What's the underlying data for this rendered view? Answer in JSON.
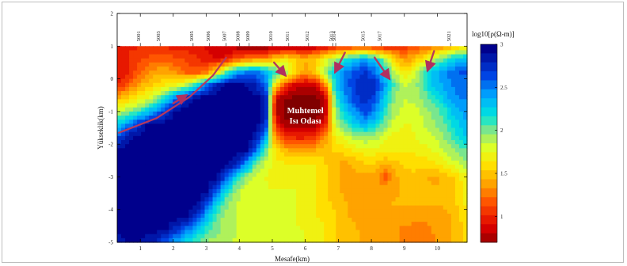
{
  "chart_data": {
    "type": "heatmap",
    "xlabel": "Mesafe(km)",
    "ylabel": "Yükseklik(km)",
    "x_ticks": [
      1,
      2,
      3,
      4,
      5,
      6,
      7,
      8,
      9,
      10
    ],
    "y_ticks": [
      2,
      1,
      0,
      -1,
      -2,
      -3,
      -4,
      -5
    ],
    "xlim": [
      0.3,
      10.9
    ],
    "ylim": [
      -5,
      2
    ],
    "colorbar": {
      "label": "log10[ρ(Ω-m)]",
      "ticks": [
        3,
        2.5,
        2,
        1.5,
        1
      ],
      "range": [
        0.7,
        3
      ]
    },
    "stations": [
      {
        "name": "5001",
        "x": 1.0
      },
      {
        "name": "5003",
        "x": 1.6
      },
      {
        "name": "5005",
        "x": 2.6
      },
      {
        "name": "5006",
        "x": 3.1
      },
      {
        "name": "5007",
        "x": 3.6
      },
      {
        "name": "5008",
        "x": 4.0
      },
      {
        "name": "5009",
        "x": 4.3
      },
      {
        "name": "5010",
        "x": 5.0
      },
      {
        "name": "5011",
        "x": 5.5
      },
      {
        "name": "5012",
        "x": 6.1
      },
      {
        "name": "5013",
        "x": 6.84
      },
      {
        "name": "5014",
        "x": 6.92
      },
      {
        "name": "5015",
        "x": 7.8
      },
      {
        "name": "5017",
        "x": 8.3
      },
      {
        "name": "5021",
        "x": 10.4
      }
    ],
    "annotation": {
      "line1": "Muhtemel",
      "line2": "Isı Odası",
      "x": 6.0,
      "y": -1.1
    },
    "faults": [
      {
        "x": [
          0.35,
          1.5,
          2.5,
          3.2,
          3.6
        ],
        "y": [
          -1.65,
          -1.2,
          -0.55,
          0.1,
          0.65
        ]
      },
      {
        "x": [
          2.0,
          2.4
        ],
        "y": [
          -0.75,
          -0.5
        ]
      },
      {
        "x": [
          5.05,
          5.4
        ],
        "y": [
          0.5,
          0.1
        ]
      },
      {
        "x": [
          7.2,
          6.9
        ],
        "y": [
          0.8,
          0.2
        ]
      },
      {
        "x": [
          8.1,
          8.55
        ],
        "y": [
          0.65,
          0.0
        ]
      },
      {
        "x": [
          9.9,
          9.7
        ],
        "y": [
          0.85,
          0.25
        ]
      }
    ],
    "model": {
      "grid_x": [
        0.3,
        0.6,
        0.9,
        1.2,
        1.5,
        1.8,
        2.1,
        2.4,
        2.7,
        3.0,
        3.3,
        3.6,
        3.9,
        4.2,
        4.5,
        4.8,
        5.1,
        5.4,
        5.7,
        6.0,
        6.3,
        6.6,
        6.9,
        7.2,
        7.5,
        7.8,
        8.1,
        8.4,
        8.7,
        9.0,
        9.3,
        9.6,
        9.9,
        10.2,
        10.5,
        10.8
      ],
      "grid_y": [
        1.0,
        0.6,
        0.2,
        -0.2,
        -0.6,
        -1.0,
        -1.4,
        -1.8,
        -2.2,
        -2.6,
        -3.0,
        -3.4,
        -3.8,
        -4.2,
        -4.6,
        -5.0
      ],
      "log_resistivity": [
        [
          1.05,
          1.05,
          1.05,
          1.05,
          1.05,
          1.05,
          1.0,
          1.0,
          1.0,
          0.95,
          0.9,
          0.85,
          0.8,
          0.75,
          0.75,
          0.75,
          0.75,
          0.75,
          0.8,
          0.8,
          0.85,
          0.9,
          1.0,
          1.05,
          1.1,
          1.1,
          1.05,
          1.0,
          1.05,
          1.1,
          1.2,
          1.25,
          1.3,
          1.4,
          1.5,
          1.6
        ],
        [
          1.0,
          1.05,
          1.15,
          1.2,
          1.25,
          1.25,
          1.2,
          1.15,
          1.1,
          1.0,
          0.95,
          1.0,
          1.2,
          1.3,
          1.4,
          1.4,
          1.6,
          1.7,
          1.6,
          1.5,
          1.6,
          1.8,
          2.0,
          2.2,
          2.35,
          2.45,
          2.3,
          2.0,
          1.6,
          1.4,
          1.5,
          1.7,
          1.95,
          2.1,
          2.3,
          2.4
        ],
        [
          0.95,
          1.05,
          1.2,
          1.35,
          1.45,
          1.45,
          1.35,
          1.25,
          1.2,
          1.3,
          1.65,
          2.1,
          2.45,
          2.55,
          2.6,
          2.4,
          2.2,
          2.0,
          1.6,
          1.4,
          1.6,
          2.0,
          2.3,
          2.55,
          2.7,
          2.75,
          2.6,
          2.3,
          1.9,
          1.7,
          1.85,
          2.1,
          2.35,
          2.5,
          2.6,
          2.65
        ],
        [
          1.05,
          1.2,
          1.4,
          1.55,
          1.65,
          1.7,
          1.8,
          1.95,
          2.25,
          2.6,
          2.9,
          3.0,
          3.0,
          2.95,
          2.85,
          2.6,
          1.6,
          1.1,
          0.9,
          0.85,
          0.9,
          1.3,
          2.3,
          2.55,
          2.75,
          2.85,
          2.8,
          2.5,
          2.1,
          1.9,
          1.95,
          2.15,
          2.35,
          2.45,
          2.55,
          2.6
        ],
        [
          1.5,
          1.6,
          1.7,
          1.8,
          2.0,
          2.3,
          2.6,
          2.85,
          3.0,
          3.0,
          3.0,
          3.0,
          3.0,
          3.0,
          3.0,
          2.9,
          0.9,
          0.75,
          0.7,
          0.7,
          0.7,
          0.85,
          2.1,
          2.5,
          2.7,
          2.8,
          2.7,
          2.3,
          2.0,
          1.9,
          1.95,
          2.05,
          2.2,
          2.35,
          2.5,
          2.55
        ],
        [
          1.9,
          2.0,
          2.1,
          2.3,
          2.55,
          2.8,
          3.0,
          3.0,
          3.0,
          3.0,
          3.0,
          3.0,
          3.0,
          3.0,
          3.0,
          2.9,
          0.85,
          0.7,
          0.7,
          0.7,
          0.7,
          0.8,
          2.0,
          2.3,
          2.5,
          2.7,
          2.55,
          2.2,
          1.95,
          1.85,
          1.85,
          1.95,
          2.05,
          2.15,
          2.35,
          2.45
        ],
        [
          2.3,
          2.5,
          2.75,
          2.95,
          3.0,
          3.0,
          3.0,
          3.0,
          3.0,
          3.0,
          3.0,
          3.0,
          3.0,
          3.0,
          3.0,
          2.8,
          1.0,
          0.8,
          0.75,
          0.75,
          0.8,
          1.0,
          1.9,
          2.1,
          2.3,
          2.4,
          2.3,
          2.05,
          1.85,
          1.8,
          1.8,
          1.9,
          2.0,
          2.1,
          2.25,
          2.4
        ],
        [
          2.7,
          2.9,
          3.0,
          3.0,
          3.0,
          3.0,
          3.0,
          3.0,
          3.0,
          3.0,
          3.0,
          3.0,
          3.0,
          3.0,
          2.9,
          2.4,
          1.35,
          1.1,
          1.05,
          1.05,
          1.15,
          1.4,
          1.7,
          1.85,
          1.95,
          2.0,
          1.95,
          1.85,
          1.75,
          1.75,
          1.8,
          1.85,
          1.9,
          2.0,
          2.15,
          2.3
        ],
        [
          3.0,
          3.0,
          3.0,
          3.0,
          3.0,
          3.0,
          3.0,
          3.0,
          3.0,
          3.0,
          3.0,
          3.0,
          3.0,
          3.0,
          2.6,
          2.1,
          1.65,
          1.5,
          1.45,
          1.45,
          1.5,
          1.55,
          1.6,
          1.65,
          1.7,
          1.75,
          1.75,
          1.7,
          1.7,
          1.7,
          1.7,
          1.75,
          1.8,
          1.9,
          2.0,
          2.1
        ],
        [
          3.0,
          3.0,
          3.0,
          3.0,
          3.0,
          3.0,
          3.0,
          3.0,
          3.0,
          3.0,
          3.0,
          3.0,
          2.85,
          2.5,
          2.1,
          1.85,
          1.75,
          1.7,
          1.7,
          1.7,
          1.7,
          1.6,
          1.5,
          1.45,
          1.5,
          1.6,
          1.6,
          1.5,
          1.55,
          1.6,
          1.65,
          1.65,
          1.65,
          1.75,
          1.85,
          1.95
        ],
        [
          3.0,
          3.0,
          3.0,
          3.0,
          3.0,
          3.0,
          3.0,
          3.0,
          3.0,
          3.0,
          3.0,
          2.7,
          2.3,
          2.0,
          1.85,
          1.8,
          1.75,
          1.75,
          1.75,
          1.7,
          1.7,
          1.6,
          1.5,
          1.45,
          1.45,
          1.45,
          1.45,
          1.2,
          1.45,
          1.55,
          1.55,
          1.5,
          1.45,
          1.5,
          1.6,
          1.75
        ],
        [
          3.0,
          3.0,
          3.0,
          3.0,
          3.0,
          3.0,
          3.0,
          3.0,
          3.0,
          3.0,
          2.7,
          2.25,
          2.0,
          1.85,
          1.8,
          1.8,
          1.8,
          1.8,
          1.8,
          1.75,
          1.7,
          1.6,
          1.5,
          1.45,
          1.45,
          1.45,
          1.45,
          1.45,
          1.45,
          1.5,
          1.5,
          1.5,
          1.5,
          1.5,
          1.55,
          1.7
        ],
        [
          3.0,
          3.0,
          3.0,
          3.0,
          3.0,
          3.0,
          3.0,
          3.0,
          3.0,
          2.75,
          2.3,
          2.05,
          1.9,
          1.85,
          1.8,
          1.8,
          1.8,
          1.8,
          1.8,
          1.75,
          1.7,
          1.65,
          1.55,
          1.5,
          1.45,
          1.45,
          1.45,
          1.45,
          1.5,
          1.5,
          1.5,
          1.5,
          1.5,
          1.5,
          1.55,
          1.7
        ],
        [
          3.0,
          3.0,
          3.0,
          3.0,
          3.0,
          3.0,
          3.0,
          3.0,
          2.8,
          2.4,
          2.1,
          1.95,
          1.9,
          1.85,
          1.85,
          1.8,
          1.8,
          1.8,
          1.8,
          1.75,
          1.7,
          1.65,
          1.6,
          1.5,
          1.45,
          1.45,
          1.45,
          1.45,
          1.45,
          1.45,
          1.4,
          1.4,
          1.4,
          1.45,
          1.5,
          1.65
        ],
        [
          2.95,
          3.0,
          3.0,
          3.0,
          3.0,
          2.95,
          2.8,
          2.6,
          2.4,
          2.2,
          2.05,
          1.95,
          1.9,
          1.85,
          1.85,
          1.85,
          1.8,
          1.8,
          1.8,
          1.8,
          1.75,
          1.7,
          1.6,
          1.55,
          1.5,
          1.45,
          1.45,
          1.45,
          1.4,
          1.35,
          1.35,
          1.35,
          1.4,
          1.45,
          1.5,
          1.6
        ],
        [
          2.9,
          2.95,
          2.95,
          2.9,
          2.8,
          2.6,
          2.4,
          2.25,
          2.1,
          2.0,
          1.95,
          1.9,
          1.9,
          1.85,
          1.85,
          1.85,
          1.8,
          1.8,
          1.8,
          1.8,
          1.75,
          1.7,
          1.6,
          1.55,
          1.5,
          1.45,
          1.45,
          1.45,
          1.4,
          1.35,
          1.3,
          1.3,
          1.35,
          1.45,
          1.5,
          1.6
        ]
      ]
    }
  }
}
